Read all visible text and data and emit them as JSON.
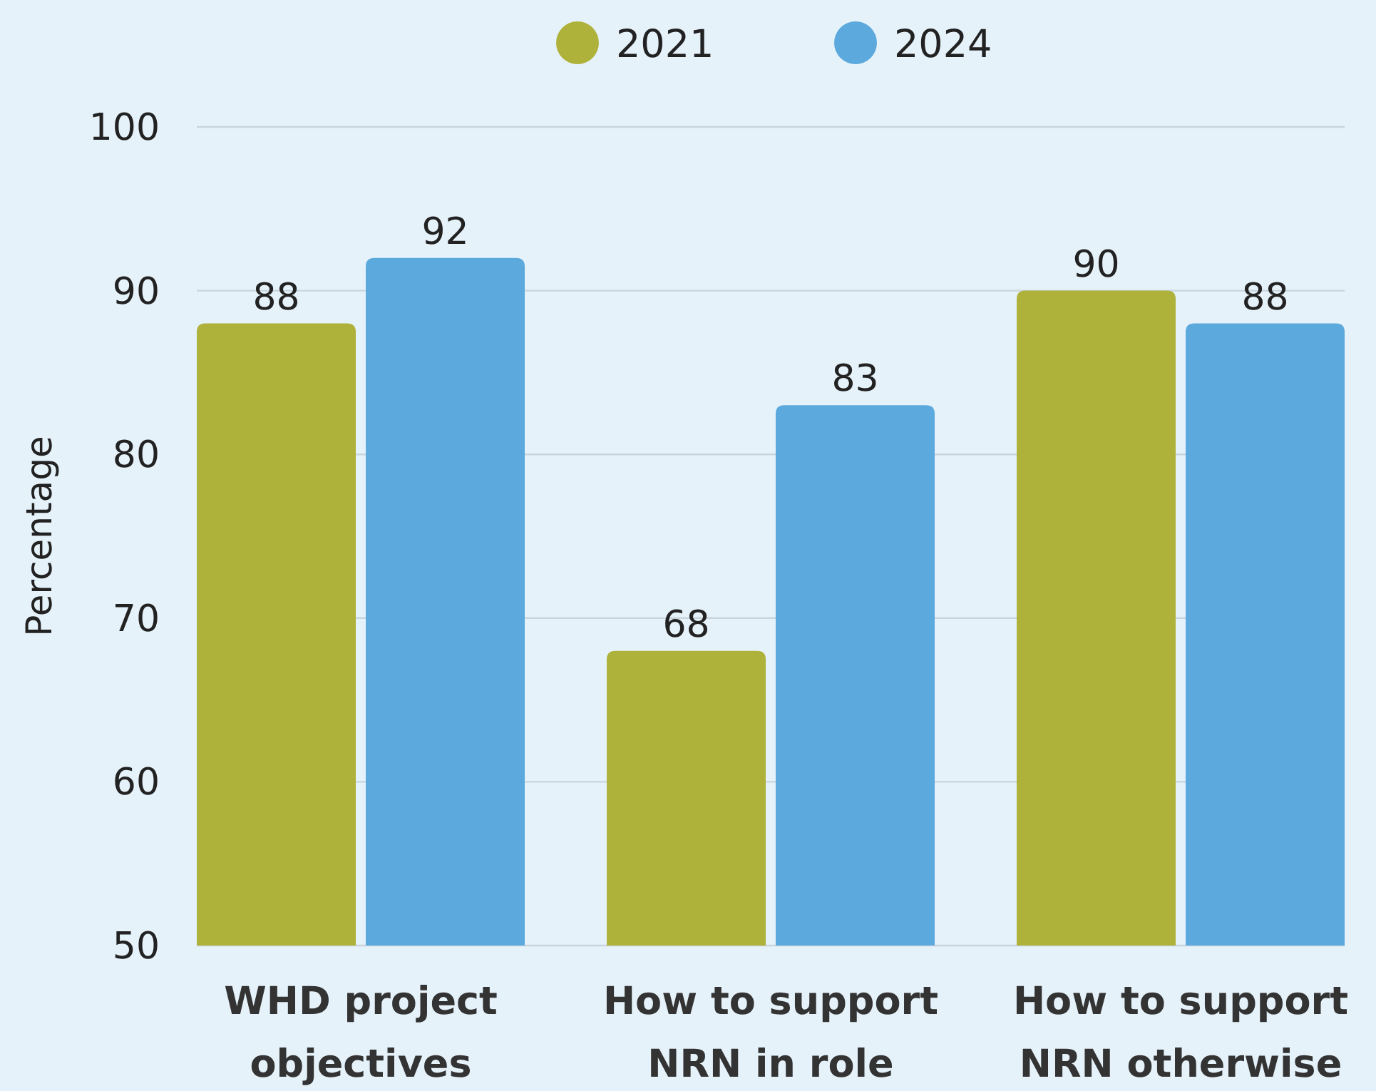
{
  "chart_data": {
    "type": "bar",
    "ylabel": "Percentage",
    "categories": [
      "WHD project objectives",
      "How to support NRN in role",
      "How to support NRN otherwise"
    ],
    "series": [
      {
        "name": "2021",
        "color": "#afb23a",
        "values": [
          88,
          68,
          90
        ]
      },
      {
        "name": "2024",
        "color": "#5ca9dd",
        "values": [
          92,
          83,
          88
        ]
      }
    ],
    "ylim": [
      50,
      100
    ],
    "yticks": [
      50,
      60,
      70,
      80,
      90,
      100
    ],
    "grid": "y",
    "legend": "top",
    "data_labels": true
  }
}
